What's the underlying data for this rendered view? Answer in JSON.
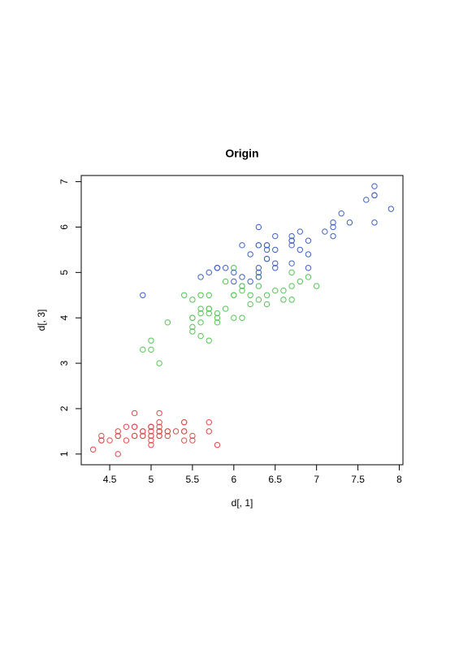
{
  "chart_data": {
    "type": "scatter",
    "title": "Origin",
    "x_label": "d[, 1]",
    "y_label": "d[, 3]",
    "xlim": [
      4.156,
      8.044
    ],
    "ylim": [
      0.764,
      7.136
    ],
    "xticks": [
      4.5,
      5.0,
      5.5,
      6.0,
      6.5,
      7.0,
      7.5,
      8.0
    ],
    "yticks": [
      1,
      2,
      3,
      4,
      5,
      6,
      7
    ],
    "series": [
      {
        "color": "#df4a4a",
        "x": [
          5.1,
          4.9,
          4.7,
          4.6,
          5.0,
          5.4,
          4.6,
          5.0,
          4.4,
          4.9,
          5.4,
          4.8,
          4.8,
          4.3,
          5.8,
          5.7,
          5.4,
          5.1,
          5.7,
          5.1,
          5.4,
          5.1,
          4.6,
          5.1,
          4.8,
          5.0,
          5.0,
          5.2,
          5.2,
          4.7,
          4.8,
          5.4,
          5.2,
          5.5,
          4.9,
          5.0,
          5.5,
          4.9,
          4.4,
          5.1,
          5.0,
          4.5,
          4.4,
          5.0,
          5.1,
          4.8,
          5.1,
          4.6,
          5.3,
          5.0
        ],
        "values": [
          1.4,
          1.4,
          1.3,
          1.5,
          1.4,
          1.7,
          1.4,
          1.5,
          1.4,
          1.5,
          1.5,
          1.6,
          1.4,
          1.1,
          1.2,
          1.5,
          1.3,
          1.4,
          1.7,
          1.5,
          1.7,
          1.5,
          1.0,
          1.7,
          1.9,
          1.6,
          1.6,
          1.5,
          1.4,
          1.6,
          1.6,
          1.5,
          1.5,
          1.4,
          1.5,
          1.2,
          1.3,
          1.4,
          1.3,
          1.5,
          1.3,
          1.3,
          1.3,
          1.6,
          1.9,
          1.4,
          1.6,
          1.4,
          1.5,
          1.4
        ]
      },
      {
        "color": "#55c555",
        "x": [
          7.0,
          6.4,
          6.9,
          5.5,
          6.5,
          5.7,
          6.3,
          4.9,
          6.6,
          5.2,
          5.0,
          5.9,
          6.0,
          6.1,
          5.6,
          6.7,
          5.6,
          5.8,
          6.2,
          5.6,
          5.9,
          6.1,
          6.3,
          6.1,
          6.4,
          6.6,
          6.8,
          6.7,
          6.0,
          5.7,
          5.5,
          5.5,
          5.8,
          6.0,
          5.4,
          6.0,
          6.7,
          6.3,
          5.6,
          5.5,
          5.5,
          6.1,
          5.8,
          5.0,
          5.6,
          5.7,
          5.7,
          6.2,
          5.1,
          5.7
        ],
        "values": [
          4.7,
          4.5,
          4.9,
          4.0,
          4.6,
          4.5,
          4.7,
          3.3,
          4.6,
          3.9,
          3.5,
          4.2,
          4.0,
          4.7,
          3.6,
          4.4,
          4.5,
          4.1,
          4.5,
          3.9,
          4.8,
          4.0,
          4.9,
          4.7,
          4.3,
          4.4,
          4.8,
          5.0,
          4.5,
          3.5,
          3.8,
          3.7,
          3.9,
          5.1,
          4.5,
          4.5,
          4.7,
          4.4,
          4.1,
          4.0,
          4.4,
          4.6,
          4.0,
          3.3,
          4.2,
          4.2,
          4.2,
          4.3,
          3.0,
          4.1
        ]
      },
      {
        "color": "#3f62c4",
        "x": [
          6.3,
          5.8,
          7.1,
          6.3,
          6.5,
          7.6,
          4.9,
          7.3,
          6.7,
          7.2,
          6.5,
          6.4,
          6.8,
          5.7,
          5.8,
          6.4,
          6.5,
          7.7,
          7.7,
          6.0,
          6.9,
          5.6,
          7.7,
          6.3,
          6.7,
          7.2,
          6.2,
          6.1,
          6.4,
          7.2,
          7.4,
          7.9,
          6.4,
          6.3,
          6.1,
          7.7,
          6.3,
          6.4,
          6.0,
          6.9,
          6.7,
          6.9,
          5.8,
          6.8,
          6.7,
          6.7,
          6.3,
          6.5,
          6.2,
          5.9
        ],
        "values": [
          6.0,
          5.1,
          5.9,
          5.6,
          5.8,
          6.6,
          4.5,
          6.3,
          5.8,
          6.1,
          5.1,
          5.3,
          5.5,
          5.0,
          5.1,
          5.3,
          5.5,
          6.7,
          6.9,
          5.0,
          5.7,
          4.9,
          6.7,
          4.9,
          5.7,
          6.0,
          4.8,
          4.9,
          5.6,
          5.8,
          6.1,
          6.4,
          5.6,
          5.1,
          5.6,
          6.1,
          5.6,
          5.5,
          4.8,
          5.4,
          5.6,
          5.1,
          5.1,
          5.9,
          5.7,
          5.2,
          5.0,
          5.2,
          5.4,
          5.1
        ]
      }
    ]
  }
}
